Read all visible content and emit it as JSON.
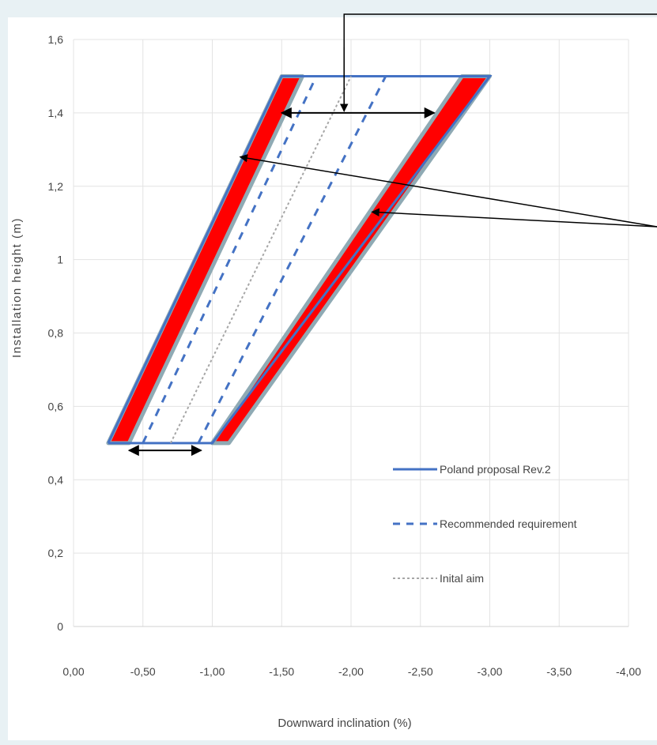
{
  "chart_data": {
    "type": "line",
    "title": "",
    "xlabel": "Downward inclination (%)",
    "ylabel": "Installation height (m)",
    "xlim": [
      0,
      -4
    ],
    "ylim": [
      0,
      1.6
    ],
    "x_ticks": [
      "0,00",
      "-0,50",
      "-1,00",
      "-1,50",
      "-2,00",
      "-2,50",
      "-3,00",
      "-3,50",
      "-4,00"
    ],
    "y_ticks": [
      "0",
      "0,2",
      "0,4",
      "0,6",
      "0,8",
      "1",
      "1,2",
      "1,4",
      "1,6"
    ],
    "grid": true,
    "legend_position": "bottom-right",
    "series": [
      {
        "name": "Poland proposal Rev.2",
        "style": "solid",
        "color": "#4472c4",
        "points": [
          [
            -0.25,
            0.5
          ],
          [
            -1.0,
            0.5
          ],
          [
            -3.0,
            1.5
          ],
          [
            -1.5,
            1.5
          ],
          [
            -0.25,
            0.5
          ]
        ]
      },
      {
        "name": "Recommended requirement",
        "style": "dashed",
        "color": "#4472c4",
        "lines": [
          [
            [
              -0.5,
              0.5
            ],
            [
              -1.75,
              1.5
            ]
          ],
          [
            [
              -0.9,
              0.5
            ],
            [
              -2.25,
              1.5
            ]
          ]
        ]
      },
      {
        "name": "Initial aim",
        "style": "dotted",
        "color": "#a6a6a6",
        "points": [
          [
            -0.7,
            0.5
          ],
          [
            -2.0,
            1.5
          ]
        ]
      }
    ],
    "legend": [
      {
        "label": "Poland proposal Rev.2",
        "style": "solid"
      },
      {
        "label": "Recommended requirement",
        "style": "dashed"
      },
      {
        "label": "Inital aim",
        "style": "dotted"
      }
    ],
    "highlight_bands": [
      {
        "color": "#ff0000",
        "outline": "#8faab4",
        "points": [
          [
            -0.25,
            0.5
          ],
          [
            -0.4,
            0.5
          ],
          [
            -1.65,
            1.5
          ],
          [
            -1.5,
            1.5
          ]
        ]
      },
      {
        "color": "#ff0000",
        "outline": "#8faab4",
        "points": [
          [
            -1.0,
            0.5
          ],
          [
            -1.12,
            0.5
          ],
          [
            -3.0,
            1.5
          ],
          [
            -2.8,
            1.5
          ]
        ]
      }
    ],
    "annotations": [
      {
        "kind": "double-arrow",
        "from": [
          -0.4,
          0.48
        ],
        "to": [
          -0.92,
          0.48
        ]
      },
      {
        "kind": "double-arrow",
        "from": [
          -1.5,
          1.4
        ],
        "to": [
          -2.6,
          1.4
        ]
      },
      {
        "kind": "callout-arrow",
        "target": [
          -1.95,
          1.4
        ]
      },
      {
        "kind": "callout-arrow",
        "target": [
          -1.2,
          1.28
        ]
      },
      {
        "kind": "callout-arrow",
        "target": [
          -2.15,
          1.13
        ]
      }
    ]
  }
}
